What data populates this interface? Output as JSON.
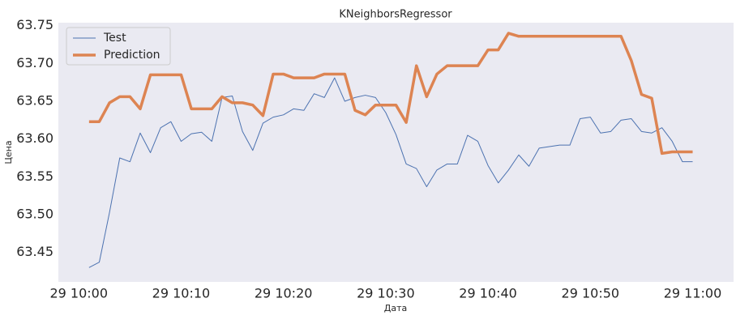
{
  "chart_data": {
    "type": "line",
    "title": "KNeighborsRegressor",
    "x_label": "Дата",
    "y_label": "Цена",
    "x": [
      "29 10:01",
      "29 10:02",
      "29 10:03",
      "29 10:04",
      "29 10:05",
      "29 10:06",
      "29 10:07",
      "29 10:08",
      "29 10:09",
      "29 10:10",
      "29 10:11",
      "29 10:12",
      "29 10:13",
      "29 10:14",
      "29 10:15",
      "29 10:16",
      "29 10:17",
      "29 10:18",
      "29 10:19",
      "29 10:20",
      "29 10:21",
      "29 10:22",
      "29 10:23",
      "29 10:24",
      "29 10:25",
      "29 10:26",
      "29 10:27",
      "29 10:28",
      "29 10:29",
      "29 10:30",
      "29 10:31",
      "29 10:32",
      "29 10:33",
      "29 10:34",
      "29 10:35",
      "29 10:36",
      "29 10:37",
      "29 10:38",
      "29 10:39",
      "29 10:40",
      "29 10:41",
      "29 10:42",
      "29 10:43",
      "29 10:44",
      "29 10:45",
      "29 10:46",
      "29 10:47",
      "29 10:48",
      "29 10:49",
      "29 10:50",
      "29 10:51",
      "29 10:52",
      "29 10:53",
      "29 10:54",
      "29 10:55",
      "29 10:56",
      "29 10:57",
      "29 10:58",
      "29 10:59",
      "29 11:00"
    ],
    "series": [
      {
        "name": "Test",
        "color": "#4c72b0",
        "width": 1,
        "values": [
          63.43,
          63.437,
          63.503,
          63.575,
          63.57,
          63.608,
          63.582,
          63.615,
          63.623,
          63.597,
          63.607,
          63.609,
          63.597,
          63.655,
          63.657,
          63.61,
          63.585,
          63.621,
          63.629,
          63.632,
          63.64,
          63.638,
          63.66,
          63.655,
          63.681,
          63.65,
          63.655,
          63.658,
          63.655,
          63.635,
          63.606,
          63.567,
          63.561,
          63.537,
          63.559,
          63.567,
          63.567,
          63.605,
          63.597,
          63.565,
          63.542,
          63.559,
          63.579,
          63.564,
          63.588,
          63.59,
          63.592,
          63.592,
          63.627,
          63.629,
          63.608,
          63.61,
          63.625,
          63.627,
          63.61,
          63.608,
          63.615,
          63.597,
          63.57,
          63.57
        ]
      },
      {
        "name": "Prediction",
        "color": "#dd8452",
        "width": 3.5,
        "values": [
          63.623,
          63.623,
          63.648,
          63.656,
          63.656,
          63.64,
          63.685,
          63.685,
          63.685,
          63.685,
          63.64,
          63.64,
          63.64,
          63.656,
          63.648,
          63.648,
          63.645,
          63.631,
          63.686,
          63.686,
          63.681,
          63.681,
          63.681,
          63.686,
          63.686,
          63.686,
          63.638,
          63.632,
          63.645,
          63.645,
          63.645,
          63.622,
          63.697,
          63.656,
          63.686,
          63.697,
          63.697,
          63.697,
          63.697,
          63.718,
          63.718,
          63.74,
          63.736,
          63.736,
          63.736,
          63.736,
          63.736,
          63.736,
          63.736,
          63.736,
          63.736,
          63.736,
          63.736,
          63.704,
          63.659,
          63.654,
          63.581,
          63.583,
          63.583,
          63.583
        ]
      }
    ],
    "xlim": [
      "29 09:58",
      "29 11:04"
    ],
    "xticks": [
      "29 10:00",
      "29 10:10",
      "29 10:20",
      "29 10:30",
      "29 10:40",
      "29 10:50",
      "29 11:00"
    ],
    "ylim": [
      63.411,
      63.754
    ],
    "yticks": [
      63.45,
      {
        "value": 63.5,
        "label": "63.50"
      },
      63.55,
      {
        "value": 63.6,
        "label": "63.60"
      },
      63.65,
      {
        "value": 63.7,
        "label": "63.70"
      },
      63.75
    ],
    "grid": false,
    "legend": "upper left"
  }
}
